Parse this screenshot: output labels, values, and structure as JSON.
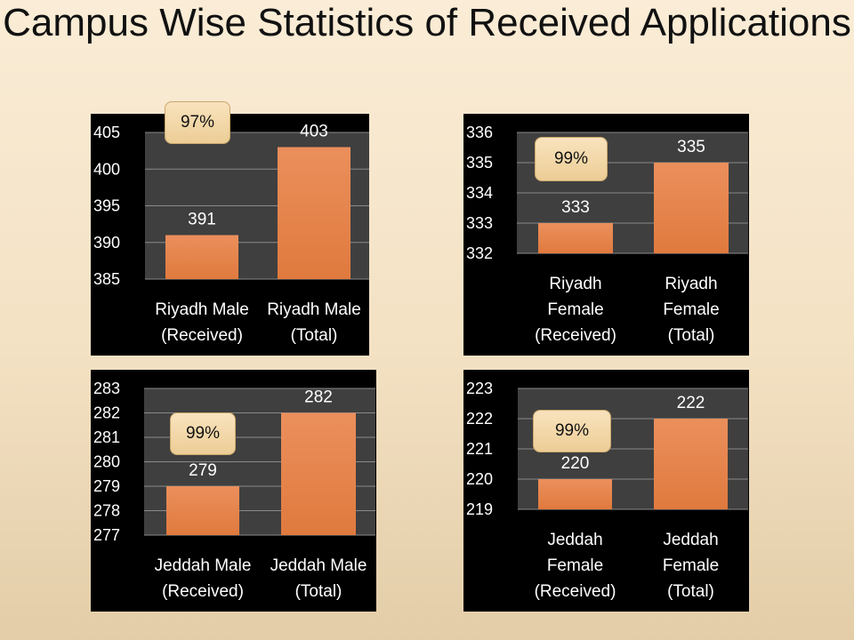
{
  "title": "Campus Wise Statistics of Received Applications",
  "chart_data": [
    {
      "type": "bar",
      "categories": [
        [
          "Riyadh Male",
          "(Received)"
        ],
        [
          "Riyadh Male",
          "(Total)"
        ]
      ],
      "values": [
        391,
        403
      ],
      "value_labels": [
        "391",
        "403"
      ],
      "ylim": [
        385,
        405
      ],
      "yticks": [
        385,
        390,
        395,
        400,
        405
      ],
      "badge": "97%",
      "grid": true,
      "bar_color": "#e07a3e"
    },
    {
      "type": "bar",
      "categories": [
        [
          "Riyadh",
          "Female",
          "(Received)"
        ],
        [
          "Riyadh",
          "Female",
          "(Total)"
        ]
      ],
      "values": [
        333,
        335
      ],
      "value_labels": [
        "333",
        "335"
      ],
      "ylim": [
        332,
        336
      ],
      "yticks": [
        332,
        333,
        334,
        335,
        336
      ],
      "badge": "99%",
      "grid": true,
      "bar_color": "#e07a3e"
    },
    {
      "type": "bar",
      "categories": [
        [
          "Jeddah Male",
          "(Received)"
        ],
        [
          "Jeddah Male",
          "(Total)"
        ]
      ],
      "values": [
        279,
        282
      ],
      "value_labels": [
        "279",
        "282"
      ],
      "ylim": [
        277,
        283
      ],
      "yticks": [
        277,
        278,
        279,
        280,
        281,
        282,
        283
      ],
      "badge": "99%",
      "grid": true,
      "bar_color": "#e07a3e"
    },
    {
      "type": "bar",
      "categories": [
        [
          "Jeddah",
          "Female",
          "(Received)"
        ],
        [
          "Jeddah",
          "Female",
          "(Total)"
        ]
      ],
      "values": [
        220,
        222
      ],
      "value_labels": [
        "220",
        "222"
      ],
      "ylim": [
        219,
        223
      ],
      "yticks": [
        219,
        220,
        221,
        222,
        223
      ],
      "badge": "99%",
      "grid": true,
      "bar_color": "#e07a3e"
    }
  ]
}
